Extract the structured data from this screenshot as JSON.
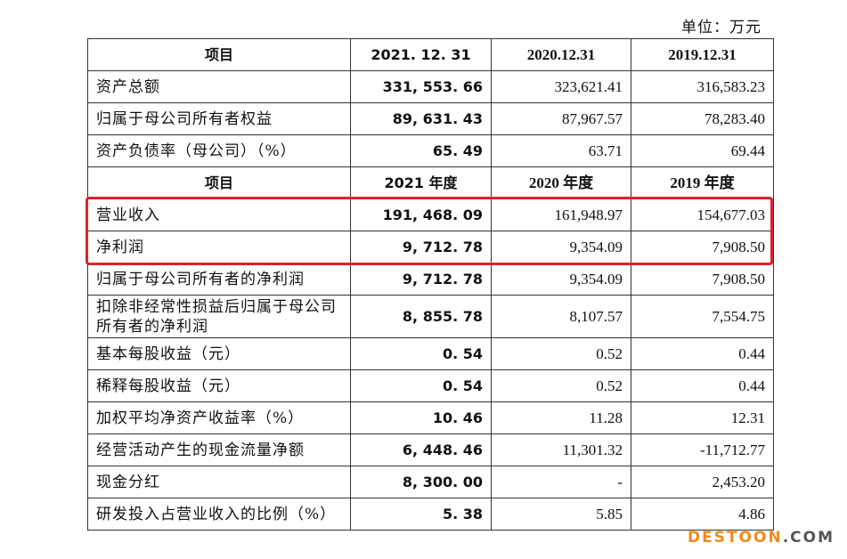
{
  "unit_label": "单位：万元",
  "header1": {
    "item": "项目",
    "c1": "2021. 12. 31",
    "c2": "2020.12.31",
    "c3": "2019.12.31"
  },
  "rows1": [
    {
      "name": "资产总额",
      "v1": "331, 553. 66",
      "v2": "323,621.41",
      "v3": "316,583.23"
    },
    {
      "name": "归属于母公司所有者权益",
      "v1": "89, 631. 43",
      "v2": "87,967.57",
      "v3": "78,283.40"
    },
    {
      "name": "资产负债率（母公司）（%）",
      "v1": "65. 49",
      "v2": "63.71",
      "v3": "69.44"
    }
  ],
  "header2": {
    "item": "项目",
    "c1": "2021 年度",
    "c2": "2020 年度",
    "c3": "2019 年度"
  },
  "rows2": [
    {
      "name": "营业收入",
      "v1": "191, 468. 09",
      "v2": "161,948.97",
      "v3": "154,677.03"
    },
    {
      "name": "净利润",
      "v1": "9, 712. 78",
      "v2": "9,354.09",
      "v3": "7,908.50"
    },
    {
      "name": "归属于母公司所有者的净利润",
      "v1": "9, 712. 78",
      "v2": "9,354.09",
      "v3": "7,908.50"
    },
    {
      "name": "扣除非经常性损益后归属于母公司所有者的净利润",
      "v1": "8, 855. 78",
      "v2": "8,107.57",
      "v3": "7,554.75"
    },
    {
      "name": "基本每股收益（元）",
      "v1": "0. 54",
      "v2": "0.52",
      "v3": "0.44"
    },
    {
      "name": "稀释每股收益（元）",
      "v1": "0. 54",
      "v2": "0.52",
      "v3": "0.44"
    },
    {
      "name": "加权平均净资产收益率（%）",
      "v1": "10. 46",
      "v2": "11.28",
      "v3": "12.31"
    },
    {
      "name": "经营活动产生的现金流量净额",
      "v1": "6, 448. 46",
      "v2": "11,301.32",
      "v3": "-11,712.77"
    },
    {
      "name": "现金分红",
      "v1": "8, 300. 00",
      "v2": "-",
      "v3": "2,453.20"
    },
    {
      "name": "研发投入占营业收入的比例（%）",
      "v1": "5. 38",
      "v2": "5.85",
      "v3": "4.86"
    }
  ],
  "watermark": {
    "part1": "DESTOON",
    "part2": ".COM"
  },
  "colors": {
    "highlight": "#e0202a",
    "watermark_orange": "#f08a1c"
  }
}
